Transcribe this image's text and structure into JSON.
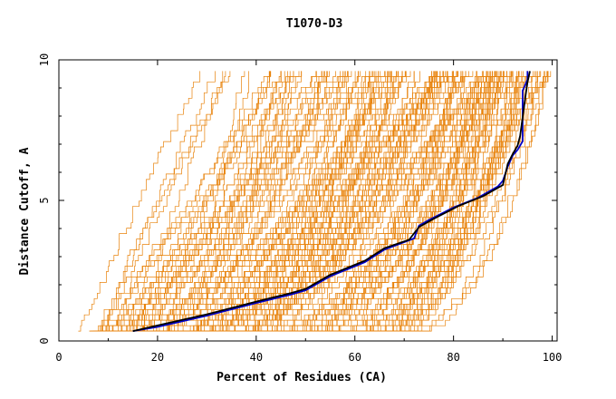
{
  "chart_data": {
    "type": "line",
    "title": "T1070-D3",
    "xlabel": "Percent of Residues (CA)",
    "ylabel": "Distance Cutoff, A",
    "xlim": [
      0,
      101
    ],
    "ylim": [
      0,
      10
    ],
    "xticks": [
      0,
      20,
      40,
      60,
      80,
      100
    ],
    "yticks": [
      0,
      5,
      10
    ],
    "grid": false,
    "legend": "none",
    "colors": {
      "background_models": "#e8820a",
      "highlight_black": "#000000",
      "highlight_blue": "#0000cc"
    },
    "background_count": 170,
    "background_start_range": [
      6,
      72
    ],
    "background_top_range": [
      29,
      99
    ],
    "highlight_series": [
      {
        "color": "blue",
        "x": [
          15,
          20,
          30,
          40,
          47,
          50,
          55,
          62,
          66,
          72,
          73,
          75,
          80,
          85,
          89,
          90,
          91,
          92,
          93,
          94,
          94,
          95,
          95
        ],
        "y": [
          0.35,
          0.5,
          0.9,
          1.35,
          1.65,
          1.8,
          2.3,
          2.8,
          3.25,
          3.65,
          4.1,
          4.3,
          4.75,
          5.1,
          5.5,
          5.7,
          6.2,
          6.6,
          6.8,
          7.1,
          8.9,
          9.3,
          9.6
        ]
      },
      {
        "color": "black",
        "x": [
          15,
          20,
          30,
          40,
          47,
          50,
          55,
          62,
          66,
          71,
          73,
          76,
          81,
          86,
          88,
          90,
          91,
          92,
          93,
          93.5,
          94.5,
          95,
          95.5
        ],
        "y": [
          0.35,
          0.55,
          0.95,
          1.4,
          1.7,
          1.85,
          2.35,
          2.85,
          3.3,
          3.6,
          4.05,
          4.35,
          4.8,
          5.15,
          5.35,
          5.55,
          6.3,
          6.65,
          6.95,
          7.3,
          8.6,
          9.2,
          9.6
        ]
      }
    ]
  }
}
